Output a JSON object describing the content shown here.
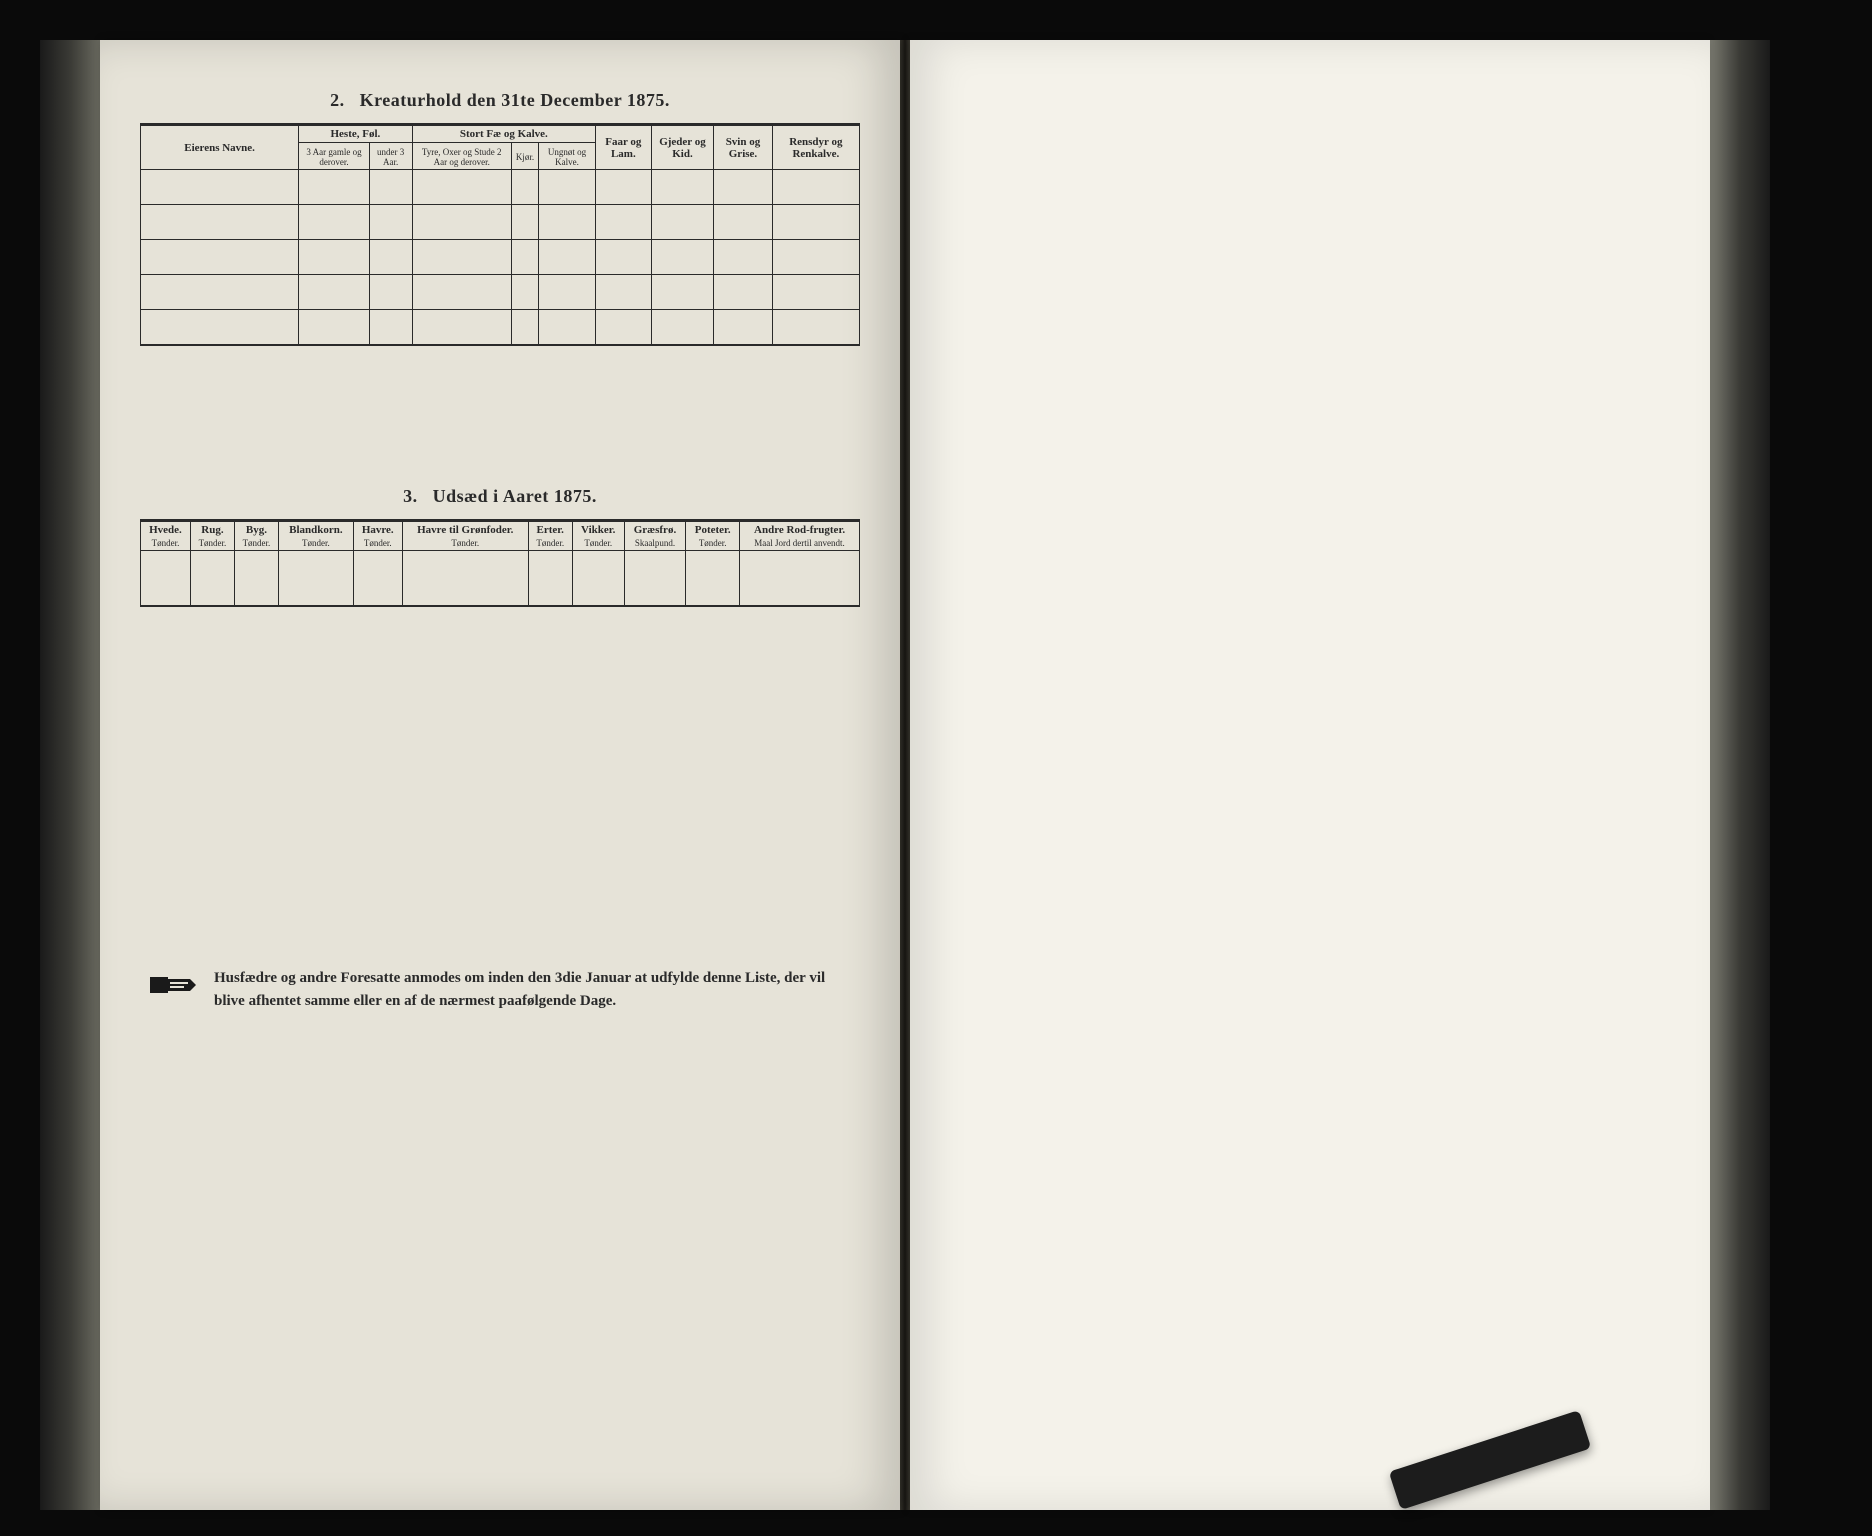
{
  "section2": {
    "num": "2.",
    "title": "Kreaturhold den 31te December 1875.",
    "col_owner": "Eierens Navne.",
    "group_heste": "Heste, Føl.",
    "heste_sub1": "3 Aar gamle og derover.",
    "heste_sub2": "under 3 Aar.",
    "group_fae": "Stort Fæ og Kalve.",
    "fae_sub1": "Tyre, Oxer og Stude 2 Aar og derover.",
    "fae_sub2": "Kjør.",
    "fae_sub3": "Ungnøt og Kalve.",
    "col_faar": "Faar og Lam.",
    "col_gjeder": "Gjeder og Kid.",
    "col_svin": "Svin og Grise.",
    "col_rensdyr": "Rensdyr og Renkalve.",
    "body_rows": 5
  },
  "section3": {
    "num": "3.",
    "title": "Udsæd i Aaret 1875.",
    "cols": [
      {
        "h": "Hvede.",
        "s": "Tønder."
      },
      {
        "h": "Rug.",
        "s": "Tønder."
      },
      {
        "h": "Byg.",
        "s": "Tønder."
      },
      {
        "h": "Blandkorn.",
        "s": "Tønder."
      },
      {
        "h": "Havre.",
        "s": "Tønder."
      },
      {
        "h": "Havre til Grønfoder.",
        "s": "Tønder."
      },
      {
        "h": "Erter.",
        "s": "Tønder."
      },
      {
        "h": "Vikker.",
        "s": "Tønder."
      },
      {
        "h": "Græsfrø.",
        "s": "Skaalpund."
      },
      {
        "h": "Poteter.",
        "s": "Tønder."
      },
      {
        "h": "Andre Rod-frugter.",
        "s": "Maal Jord dertil anvendt."
      }
    ],
    "body_rows": 1
  },
  "footnote": "Husfædre og andre Foresatte anmodes om inden den 3die Januar at udfylde denne Liste, der vil blive afhentet samme eller en af de nærmest paafølgende Dage.",
  "colors": {
    "bg": "#0a0a0a",
    "page_left": "#e6e3d8",
    "page_right": "#f4f2ea",
    "ink": "#2a2a2a"
  }
}
